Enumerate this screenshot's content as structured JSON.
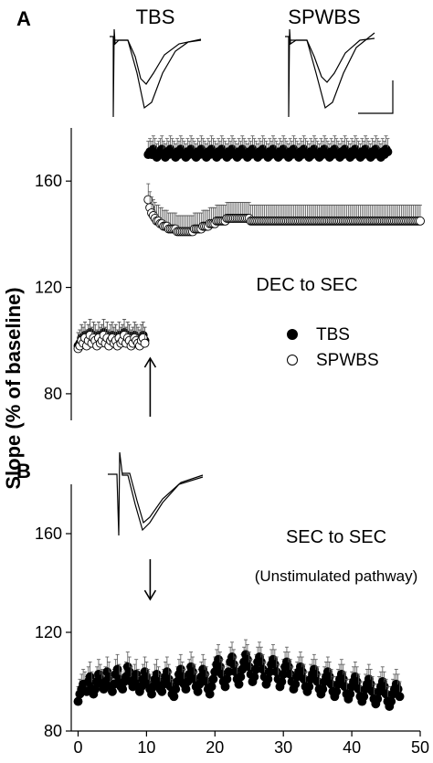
{
  "figure": {
    "ylabel": "Slope (% of baseline)",
    "colors": {
      "axis": "#000000",
      "tbs": "#000000",
      "spwbs": "#ffffff",
      "errorbar": "#555555"
    }
  },
  "chart_data": [
    {
      "panel": "A",
      "type": "scatter",
      "annotation": "DEC to SEC",
      "trace_labels": [
        "TBS",
        "SPWBS"
      ],
      "ylim": [
        70,
        180
      ],
      "xlim": [
        -1,
        50
      ],
      "yticks": [
        80,
        120,
        160
      ],
      "arrow_at_x": 10,
      "arrow_direction": "up",
      "legend": [
        {
          "name": "TBS",
          "marker": "filled-circle"
        },
        {
          "name": "SPWBS",
          "marker": "open-circle"
        }
      ],
      "legend_position": "right",
      "series": [
        {
          "name": "TBS",
          "marker": "filled",
          "x_start": 0,
          "x_step": 0.25,
          "y": [
            98,
            99,
            101,
            100,
            102,
            99,
            101,
            103,
            100,
            102,
            101,
            99,
            102,
            100,
            101,
            103,
            100,
            102,
            99,
            101,
            102,
            100,
            101,
            99,
            102,
            100,
            101,
            103,
            100,
            102,
            101,
            99,
            100,
            102,
            101,
            100,
            99,
            101,
            102,
            100,
            null,
            170,
            171,
            170,
            172,
            171,
            169,
            170,
            171,
            172,
            170,
            169,
            171,
            170,
            172,
            171,
            170,
            169,
            171,
            170,
            172,
            171,
            170,
            169,
            171,
            170,
            172,
            171,
            170,
            169,
            171,
            170,
            172,
            171,
            170,
            169,
            171,
            170,
            172,
            171,
            170,
            169,
            171,
            170,
            172,
            171,
            170,
            169,
            171,
            170,
            172,
            171,
            170,
            169,
            171,
            170,
            172,
            171,
            170,
            169,
            171,
            170,
            172,
            171,
            170,
            169,
            171,
            170,
            172,
            171,
            170,
            169,
            171,
            170,
            172,
            171,
            170,
            169,
            171,
            170,
            172,
            171,
            170,
            169,
            171,
            170,
            172,
            171,
            170,
            169,
            171,
            170,
            172,
            171,
            170,
            169,
            171,
            170,
            172,
            171,
            170,
            169,
            171,
            170,
            172,
            171,
            170,
            169,
            171,
            170,
            172,
            171,
            170,
            169,
            171,
            170,
            172,
            171,
            170,
            169,
            171,
            170,
            172,
            171,
            170,
            169,
            171,
            170,
            172,
            171,
            170,
            169,
            171,
            170,
            172,
            171,
            170,
            169,
            171,
            170,
            172,
            171
          ],
          "error": 5
        },
        {
          "name": "SPWBS",
          "marker": "open",
          "x_start": 0,
          "x_step": 0.25,
          "y": [
            97,
            98,
            100,
            99,
            101,
            98,
            100,
            102,
            99,
            101,
            100,
            98,
            101,
            99,
            100,
            102,
            99,
            101,
            98,
            100,
            101,
            99,
            100,
            98,
            101,
            99,
            100,
            102,
            99,
            101,
            100,
            98,
            99,
            101,
            100,
            99,
            98,
            100,
            101,
            99,
            null,
            153,
            150,
            148,
            147,
            146,
            145,
            145,
            144,
            144,
            143,
            143,
            143,
            142,
            142,
            142,
            142,
            142,
            141,
            141,
            141,
            141,
            141,
            141,
            141,
            141,
            141,
            141,
            142,
            142,
            142,
            142,
            142,
            143,
            143,
            143,
            143,
            144,
            144,
            144,
            144,
            145,
            145,
            145,
            145,
            145,
            145,
            146,
            146,
            146,
            146,
            146,
            146,
            146,
            146,
            146,
            146,
            146,
            146,
            146,
            146,
            145,
            145,
            145,
            145,
            145,
            145,
            145,
            145,
            145,
            145,
            145,
            145,
            145,
            145,
            145,
            145,
            145,
            145,
            145,
            145,
            145,
            145,
            145,
            145,
            145,
            145,
            145,
            145,
            145,
            145,
            145,
            145,
            145,
            145,
            145,
            145,
            145,
            145,
            145,
            145,
            145,
            145,
            145,
            145,
            145,
            145,
            145,
            145,
            145,
            145,
            145,
            145,
            145,
            145,
            145,
            145,
            145,
            145,
            145,
            145,
            145,
            145,
            145,
            145,
            145,
            145,
            145,
            145,
            145,
            145,
            145,
            145,
            145,
            145,
            145,
            145,
            145,
            145,
            145,
            145,
            145,
            145,
            145,
            145,
            145,
            145,
            145,
            145,
            145,
            145,
            145,
            145,
            145,
            145,
            145,
            145,
            145,
            145,
            145,
            145
          ],
          "error": 6
        }
      ]
    },
    {
      "panel": "B",
      "type": "scatter",
      "annotation": "SEC to SEC",
      "subannotation": "(Unstimulated pathway)",
      "ylim": [
        80,
        180
      ],
      "xlim": [
        -1,
        50
      ],
      "yticks": [
        80,
        120,
        160
      ],
      "xticks": [
        0,
        10,
        20,
        30,
        40,
        50
      ],
      "arrow_at_x": 10,
      "arrow_direction": "down",
      "series": [
        {
          "name": "",
          "marker": "filled",
          "x_start": 0,
          "x_step": 0.25,
          "y": [
            92,
            95,
            97,
            99,
            98,
            96,
            100,
            102,
            98,
            95,
            97,
            100,
            103,
            101,
            99,
            97,
            100,
            104,
            102,
            98,
            96,
            99,
            103,
            105,
            101,
            98,
            97,
            100,
            102,
            106,
            104,
            100,
            98,
            101,
            103,
            99,
            96,
            98,
            101,
            104,
            102,
            99,
            97,
            95,
            98,
            101,
            103,
            100,
            97,
            96,
            99,
            102,
            104,
            101,
            98,
            95,
            94,
            97,
            100,
            103,
            105,
            102,
            99,
            97,
            100,
            103,
            106,
            104,
            101,
            98,
            96,
            99,
            102,
            105,
            103,
            100,
            97,
            95,
            98,
            101,
            104,
            107,
            109,
            106,
            103,
            100,
            98,
            101,
            104,
            108,
            110,
            107,
            104,
            101,
            99,
            102,
            105,
            108,
            111,
            109,
            106,
            103,
            100,
            102,
            105,
            108,
            110,
            108,
            105,
            102,
            99,
            101,
            104,
            107,
            109,
            107,
            104,
            101,
            98,
            100,
            103,
            106,
            108,
            106,
            103,
            100,
            97,
            99,
            102,
            104,
            106,
            104,
            101,
            98,
            96,
            98,
            101,
            103,
            105,
            103,
            100,
            97,
            95,
            97,
            100,
            102,
            104,
            102,
            99,
            96,
            94,
            96,
            99,
            101,
            103,
            101,
            98,
            95,
            93,
            95,
            98,
            100,
            102,
            100,
            97,
            94,
            92,
            94,
            97,
            99,
            101,
            99,
            96,
            93,
            91,
            93,
            96,
            98,
            100,
            98,
            95,
            92,
            90,
            92,
            95,
            97,
            99,
            97,
            94
          ],
          "error": 6
        }
      ]
    }
  ],
  "insets": [
    {
      "label": "TBS"
    },
    {
      "label": "SPWBS"
    },
    {
      "label": ""
    }
  ]
}
